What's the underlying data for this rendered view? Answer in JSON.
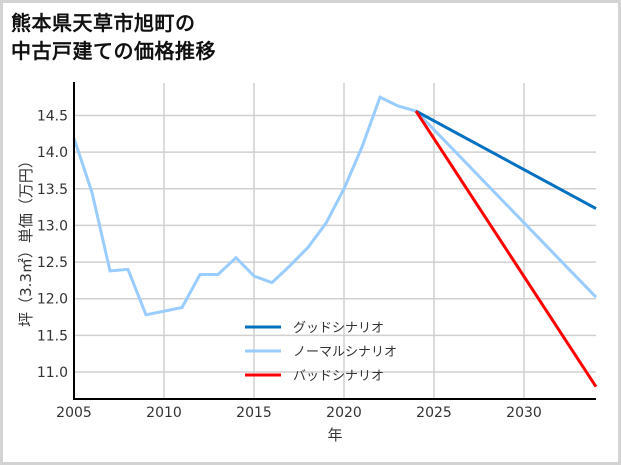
{
  "title": {
    "line1": "熊本県天草市旭町の",
    "line2": "中古戸建ての価格推移"
  },
  "colors": {
    "good": "#0070c0",
    "normal": "#99ccff",
    "bad": "#ff0000",
    "grid": "#d0d0d0",
    "axis": "#000000",
    "border": "#d3d3d3"
  },
  "chart_data": {
    "type": "line",
    "title": "熊本県天草市旭町の中古戸建ての価格推移",
    "xlabel": "年",
    "ylabel": "坪（3.3㎡）単価（万円）",
    "xlim": [
      2005,
      2034
    ],
    "ylim": [
      10.6,
      14.95
    ],
    "x_ticks": [
      2005,
      2010,
      2015,
      2020,
      2025,
      2030
    ],
    "y_ticks": [
      11.0,
      11.5,
      12.0,
      12.5,
      13.0,
      13.5,
      14.0,
      14.5
    ],
    "x_tick_labels": [
      "2005",
      "2010",
      "2015",
      "2020",
      "2025",
      "2030"
    ],
    "y_tick_labels": [
      "11.0",
      "11.5",
      "12.0",
      "12.5",
      "13.0",
      "13.5",
      "14.0",
      "14.5"
    ],
    "grid": true,
    "legend_position": "lower center",
    "series": [
      {
        "name": "グッドシナリオ",
        "color": "#0070c0",
        "x": [
          2024,
          2034
        ],
        "values": [
          14.56,
          13.23
        ]
      },
      {
        "name": "ノーマルシナリオ",
        "color": "#99ccff",
        "x": [
          2005,
          2006,
          2007,
          2008,
          2009,
          2010,
          2011,
          2012,
          2013,
          2014,
          2015,
          2016,
          2017,
          2018,
          2019,
          2020,
          2021,
          2022,
          2023,
          2024,
          2034
        ],
        "values": [
          14.19,
          13.45,
          12.38,
          12.4,
          11.78,
          11.83,
          11.88,
          12.33,
          12.33,
          12.56,
          12.31,
          12.22,
          12.45,
          12.7,
          13.03,
          13.5,
          14.07,
          14.75,
          14.63,
          14.56,
          12.02
        ]
      },
      {
        "name": "バッドシナリオ",
        "color": "#ff0000",
        "x": [
          2024,
          2034
        ],
        "values": [
          14.56,
          10.8
        ]
      }
    ]
  },
  "legend": {
    "items": [
      {
        "label": "グッドシナリオ",
        "color": "#0070c0"
      },
      {
        "label": "ノーマルシナリオ",
        "color": "#99ccff"
      },
      {
        "label": "バッドシナリオ",
        "color": "#ff0000"
      }
    ]
  }
}
